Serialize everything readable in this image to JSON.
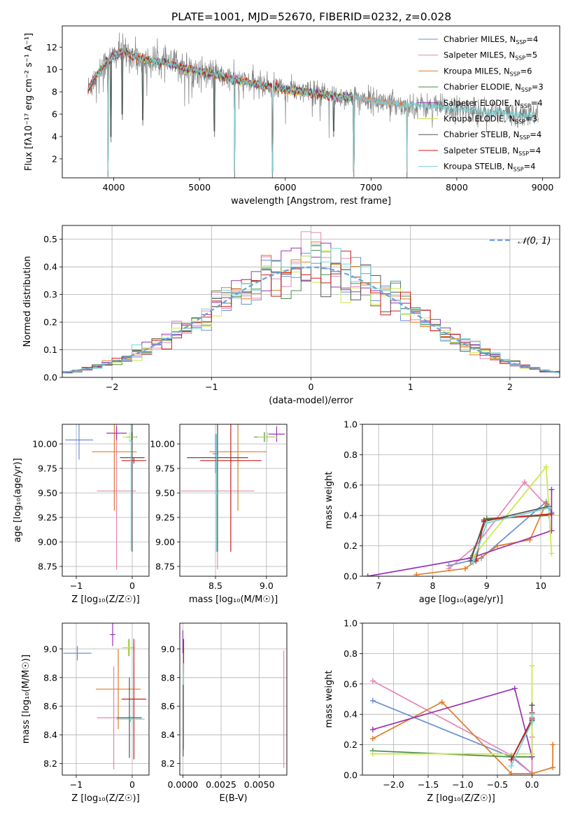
{
  "figure": {
    "title": "PLATE=1001, MJD=52670, FIBERID=0232, z=0.028"
  },
  "colors": {
    "Chabrier MILES": "#6a8fd6",
    "Salpeter MILES": "#e686b4",
    "Kroupa MILES": "#e07b28",
    "Chabrier ELODIE": "#4a8a4a",
    "Salpeter ELODIE": "#9a32b4",
    "Kroupa ELODIE": "#cce84a",
    "Chabrier STELIB": "#555555",
    "Salpeter STELIB": "#c81e1e",
    "Kroupa STELIB": "#78d2d2",
    "data": "#808080",
    "normal": "#6aa0dc"
  },
  "chart_data": [
    {
      "id": "spectrum",
      "type": "line",
      "xlabel": "wavelength [Angstrom, rest frame]",
      "ylabel": "Flux [fλ10⁻¹⁷ erg cm⁻² s⁻¹ A⁻¹]",
      "xlim": [
        3400,
        9200
      ],
      "ylim": [
        0.3,
        13.9
      ],
      "xticks": [
        4000,
        5000,
        6000,
        7000,
        8000,
        9000
      ],
      "yticks": [
        2,
        4,
        6,
        8,
        10,
        12
      ],
      "grid": false,
      "legend_position": "top-right",
      "legend": [
        {
          "model": "Chabrier MILES",
          "label": "Chabrier MILES, N",
          "sub": "SSP",
          "suffix": "=4"
        },
        {
          "model": "Salpeter MILES",
          "label": "Salpeter MILES, N",
          "sub": "SSP",
          "suffix": "=5"
        },
        {
          "model": "Kroupa MILES",
          "label": "Kroupa MILES, N",
          "sub": "SSP",
          "suffix": "=6"
        },
        {
          "model": "Chabrier ELODIE",
          "label": "Chabrier ELODIE, N",
          "sub": "SSP",
          "suffix": "=3"
        },
        {
          "model": "Salpeter ELODIE",
          "label": "Salpeter ELODIE, N",
          "sub": "SSP",
          "suffix": "=4"
        },
        {
          "model": "Kroupa ELODIE",
          "label": "Kroupa ELODIE, N",
          "sub": "SSP",
          "suffix": "=3"
        },
        {
          "model": "Chabrier STELIB",
          "label": "Chabrier STELIB, N",
          "sub": "SSP",
          "suffix": "=4"
        },
        {
          "model": "Salpeter STELIB",
          "label": "Salpeter STELIB, N",
          "sub": "SSP",
          "suffix": "=4"
        },
        {
          "model": "Kroupa STELIB",
          "label": "Kroupa STELIB, N",
          "sub": "SSP",
          "suffix": "=4"
        }
      ],
      "continuum": [
        [
          3700,
          8.2
        ],
        [
          3800,
          9.5
        ],
        [
          3900,
          10.5
        ],
        [
          4000,
          11.2
        ],
        [
          4100,
          11.6
        ],
        [
          4200,
          11.3
        ],
        [
          4400,
          10.8
        ],
        [
          4600,
          10.6
        ],
        [
          4800,
          10.2
        ],
        [
          5000,
          9.8
        ],
        [
          5200,
          9.5
        ],
        [
          5400,
          9.1
        ],
        [
          5600,
          8.8
        ],
        [
          5800,
          8.5
        ],
        [
          6000,
          8.2
        ],
        [
          6200,
          8.0
        ],
        [
          6400,
          7.8
        ],
        [
          6600,
          7.6
        ],
        [
          6800,
          7.5
        ],
        [
          7000,
          7.3
        ],
        [
          7200,
          7.0
        ],
        [
          7500,
          6.8
        ],
        [
          8000,
          6.5
        ],
        [
          8500,
          6.1
        ],
        [
          9000,
          5.8
        ]
      ],
      "absorption": [
        [
          3934,
          0.4
        ],
        [
          3969,
          3.5
        ],
        [
          4101,
          5.5
        ],
        [
          4340,
          5.0
        ],
        [
          5175,
          4.0
        ],
        [
          5410,
          0.3
        ],
        [
          5850,
          0.3
        ],
        [
          6563,
          4.0
        ],
        [
          6800,
          0.4
        ],
        [
          7420,
          0.3
        ]
      ]
    },
    {
      "id": "residuals",
      "type": "histogram",
      "xlabel": "(data-model)/error",
      "ylabel": "Normed distribution",
      "xlim": [
        -2.5,
        2.5
      ],
      "ylim": [
        0,
        0.55
      ],
      "xticks": [
        -2,
        -1,
        0,
        1,
        2
      ],
      "yticks": [
        0.0,
        0.1,
        0.2,
        0.3,
        0.4,
        0.5
      ],
      "grid": true,
      "legend_position": "top-right",
      "legend": [
        {
          "label": "𝒩(0, 1)"
        }
      ],
      "bin_width": 0.1
    },
    {
      "id": "age-vs-Z",
      "type": "scatter",
      "xlabel": "Z [log₁₀(Z/Z☉)]",
      "ylabel": "age  [log₁₀(age/yr)]",
      "xlim": [
        -1.25,
        0.3
      ],
      "ylim": [
        8.65,
        10.2
      ],
      "xticks": [
        -1,
        0
      ],
      "yticks": [
        8.75,
        9.0,
        9.25,
        9.5,
        9.75,
        10.0
      ],
      "grid": true,
      "errorbars": [
        {
          "model": "Chabrier MILES",
          "x": -0.95,
          "y": 10.04,
          "xerr": 0.25,
          "yerr": 0.2
        },
        {
          "model": "Salpeter MILES",
          "x": -0.28,
          "y": 9.52,
          "xerr": 0.35,
          "yerr": 0.8
        },
        {
          "model": "Kroupa MILES",
          "x": -0.32,
          "y": 9.92,
          "xerr": 0.4,
          "yerr": 0.6
        },
        {
          "model": "Chabrier ELODIE",
          "x": -0.01,
          "y": 10.07,
          "xerr": 0.1,
          "yerr": 0.05
        },
        {
          "model": "Salpeter ELODIE",
          "x": -0.28,
          "y": 10.11,
          "xerr": 0.18,
          "yerr": 0.07
        },
        {
          "model": "Kroupa ELODIE",
          "x": -0.05,
          "y": 10.07,
          "xerr": 0.12,
          "yerr": 0.05
        },
        {
          "model": "Chabrier STELIB",
          "x": 0.0,
          "y": 9.86,
          "xerr": 0.22,
          "yerr": 0.96
        },
        {
          "model": "Salpeter STELIB",
          "x": 0.03,
          "y": 9.83,
          "xerr": 0.22,
          "yerr": 0.03
        },
        {
          "model": "Kroupa STELIB",
          "x": -0.02,
          "y": 10.03,
          "xerr": 0.03,
          "yerr": 1.12
        }
      ]
    },
    {
      "id": "age-vs-mass",
      "type": "scatter",
      "xlabel": "mass [log₁₀(M/M☉)]",
      "ylabel": "",
      "xlim": [
        8.15,
        9.2
      ],
      "ylim": [
        8.65,
        10.2
      ],
      "xticks": [
        8.5,
        9.0
      ],
      "yticks": [
        8.75,
        9.0,
        9.25,
        9.5,
        9.75,
        10.0
      ],
      "grid": true,
      "errorbars": [
        {
          "model": "Chabrier MILES",
          "x": 8.5,
          "y": 9.9,
          "xerr": 0.03,
          "yerr": 0.2
        },
        {
          "model": "Salpeter MILES",
          "x": 8.52,
          "y": 9.52,
          "xerr": 0.36,
          "yerr": 0.8
        },
        {
          "model": "Kroupa MILES",
          "x": 8.72,
          "y": 9.92,
          "xerr": 0.28,
          "yerr": 0.6
        },
        {
          "model": "Chabrier ELODIE",
          "x": 8.98,
          "y": 10.07,
          "xerr": 0.1,
          "yerr": 0.05
        },
        {
          "model": "Salpeter ELODIE",
          "x": 9.1,
          "y": 10.1,
          "xerr": 0.08,
          "yerr": 0.08
        },
        {
          "model": "Kroupa ELODIE",
          "x": 9.01,
          "y": 10.07,
          "xerr": 0.1,
          "yerr": 0.05
        },
        {
          "model": "Chabrier STELIB",
          "x": 8.52,
          "y": 9.86,
          "xerr": 0.3,
          "yerr": 0.96
        },
        {
          "model": "Salpeter STELIB",
          "x": 8.65,
          "y": 9.83,
          "xerr": 0.3,
          "yerr": 0.93
        },
        {
          "model": "Kroupa STELIB",
          "x": 8.51,
          "y": 9.5,
          "xerr": 0.02,
          "yerr": 0.6
        }
      ]
    },
    {
      "id": "weight-vs-age",
      "type": "line",
      "xlabel": "age  [log₁₀(age/yr)]",
      "ylabel": "mass weight",
      "xlim": [
        6.7,
        10.35
      ],
      "ylim": [
        0,
        1
      ],
      "xticks": [
        7,
        8,
        9,
        10
      ],
      "yticks": [
        0.0,
        0.2,
        0.4,
        0.6,
        0.8,
        1.0
      ],
      "grid": true,
      "series": [
        {
          "model": "Chabrier MILES",
          "x": [
            8.3,
            8.9,
            10.1,
            10.2
          ],
          "y": [
            0.07,
            0.12,
            0.49,
            0.42
          ]
        },
        {
          "model": "Salpeter MILES",
          "x": [
            8.3,
            8.8,
            9.7,
            10.15
          ],
          "y": [
            0.05,
            0.2,
            0.62,
            0.45
          ]
        },
        {
          "model": "Kroupa MILES",
          "x": [
            7.7,
            8.6,
            9.2,
            9.8,
            10.1
          ],
          "y": [
            0.01,
            0.05,
            0.2,
            0.24,
            0.48
          ]
        },
        {
          "model": "Chabrier ELODIE",
          "x": [
            8.7,
            9.0,
            10.15
          ],
          "y": [
            0.12,
            0.38,
            0.4
          ]
        },
        {
          "model": "Salpeter ELODIE",
          "x": [
            6.8,
            8.7,
            10.2,
            10.2
          ],
          "y": [
            0.0,
            0.12,
            0.3,
            0.57
          ]
        },
        {
          "model": "Kroupa ELODIE",
          "x": [
            8.75,
            10.1,
            10.2
          ],
          "y": [
            0.13,
            0.72,
            0.15
          ]
        },
        {
          "model": "Chabrier STELIB",
          "x": [
            8.7,
            8.95,
            10.15
          ],
          "y": [
            0.1,
            0.36,
            0.46
          ]
        },
        {
          "model": "Salpeter STELIB",
          "x": [
            8.8,
            8.95,
            10.2
          ],
          "y": [
            0.1,
            0.37,
            0.41
          ]
        },
        {
          "model": "Kroupa STELIB",
          "x": [
            8.75,
            9.0,
            10.15
          ],
          "y": [
            0.09,
            0.35,
            0.45
          ]
        }
      ]
    },
    {
      "id": "mass-vs-Z",
      "type": "scatter",
      "xlabel": "Z [log₁₀(Z/Z☉)]",
      "ylabel": "mass [log₁₀(M/M☉)]",
      "xlim": [
        -1.25,
        0.3
      ],
      "ylim": [
        8.12,
        9.18
      ],
      "xticks": [
        -1,
        0
      ],
      "yticks": [
        8.2,
        8.4,
        8.6,
        8.8,
        9.0
      ],
      "grid": true,
      "errorbars": [
        {
          "model": "Chabrier MILES",
          "x": -0.98,
          "y": 8.97,
          "xerr": 0.25,
          "yerr": 0.05
        },
        {
          "model": "Salpeter MILES",
          "x": -0.33,
          "y": 8.52,
          "xerr": 0.3,
          "yerr": 0.36
        },
        {
          "model": "Kroupa MILES",
          "x": -0.25,
          "y": 8.72,
          "xerr": 0.4,
          "yerr": 0.28
        },
        {
          "model": "Chabrier ELODIE",
          "x": -0.06,
          "y": 9.01,
          "xerr": 0.1,
          "yerr": 0.06
        },
        {
          "model": "Salpeter ELODIE",
          "x": -0.35,
          "y": 9.1,
          "xerr": 0.05,
          "yerr": 0.08
        },
        {
          "model": "Kroupa ELODIE",
          "x": -0.07,
          "y": 9.01,
          "xerr": 0.12,
          "yerr": 0.06
        },
        {
          "model": "Chabrier STELIB",
          "x": -0.05,
          "y": 8.52,
          "xerr": 0.22,
          "yerr": 0.28
        },
        {
          "model": "Salpeter STELIB",
          "x": 0.03,
          "y": 8.65,
          "xerr": 0.22,
          "yerr": 0.42
        },
        {
          "model": "Kroupa STELIB",
          "x": -0.03,
          "y": 8.51,
          "xerr": 0.25,
          "yerr": 0.02
        }
      ]
    },
    {
      "id": "mass-vs-EBV",
      "type": "scatter",
      "xlabel": "E(B-V)",
      "ylabel": "",
      "xlim": [
        -0.0002,
        0.0068
      ],
      "ylim": [
        8.12,
        9.18
      ],
      "xticks": [
        0.0,
        0.0025,
        0.005
      ],
      "xticklabels": [
        "0.0000",
        "0.0025",
        "0.0050"
      ],
      "yticks": [
        8.2,
        8.4,
        8.6,
        8.8,
        9.0
      ],
      "grid": true,
      "errorbars": [
        {
          "model": "Salpeter MILES",
          "x": 0.0066,
          "y": 8.58,
          "xerr": 0,
          "yerr": 0.41
        },
        {
          "model": "Salpeter ELODIE",
          "x": 0.0,
          "y": 9.05,
          "xerr": 0,
          "yerr": 0.08
        },
        {
          "model": "Salpeter STELIB",
          "x": 5e-05,
          "y": 8.95,
          "xerr": 0,
          "yerr": 0.12
        },
        {
          "model": "Kroupa STELIB",
          "x": 5e-05,
          "y": 8.6,
          "xerr": 0,
          "yerr": 0.3
        },
        {
          "model": "Chabrier STELIB",
          "x": 2e-05,
          "y": 8.5,
          "xerr": 0,
          "yerr": 0.25
        }
      ]
    },
    {
      "id": "weight-vs-Z",
      "type": "line",
      "xlabel": "Z [log₁₀(Z/Z☉)]",
      "ylabel": "mass weight",
      "xlim": [
        -2.45,
        0.4
      ],
      "ylim": [
        0,
        1
      ],
      "xticks": [
        -2.0,
        -1.5,
        -1.0,
        -0.5,
        0.0
      ],
      "yticks": [
        0.0,
        0.2,
        0.4,
        0.6,
        0.8,
        1.0
      ],
      "grid": true,
      "series": [
        {
          "model": "Chabrier MILES",
          "x": [
            -2.3,
            -0.3,
            0.0,
            0.0
          ],
          "y": [
            0.49,
            0.12,
            0.01,
            0.38
          ]
        },
        {
          "model": "Salpeter MILES",
          "x": [
            -2.3,
            -0.3,
            0.0,
            0.0
          ],
          "y": [
            0.62,
            0.13,
            0.01,
            0.25
          ]
        },
        {
          "model": "Kroupa MILES",
          "x": [
            -2.3,
            -1.3,
            -0.3,
            0.0,
            0.3,
            0.3
          ],
          "y": [
            0.24,
            0.48,
            0.01,
            0.01,
            0.05,
            0.2
          ]
        },
        {
          "model": "Chabrier ELODIE",
          "x": [
            -2.3,
            -0.3,
            0.0
          ],
          "y": [
            0.16,
            0.12,
            0.12
          ]
        },
        {
          "model": "Salpeter ELODIE",
          "x": [
            -2.3,
            -0.25,
            0.0
          ],
          "y": [
            0.3,
            0.57,
            0.12
          ]
        },
        {
          "model": "Kroupa ELODIE",
          "x": [
            -2.3,
            0.0,
            0.0
          ],
          "y": [
            0.14,
            0.14,
            0.72
          ]
        },
        {
          "model": "Chabrier STELIB",
          "x": [
            -0.3,
            0.0,
            0.0
          ],
          "y": [
            0.1,
            0.36,
            0.46
          ]
        },
        {
          "model": "Salpeter STELIB",
          "x": [
            -0.3,
            0.0,
            0.0
          ],
          "y": [
            0.1,
            0.37,
            0.41
          ]
        },
        {
          "model": "Kroupa STELIB",
          "x": [
            -0.3,
            0.0,
            0.0
          ],
          "y": [
            0.06,
            0.35,
            0.4
          ]
        }
      ]
    }
  ]
}
